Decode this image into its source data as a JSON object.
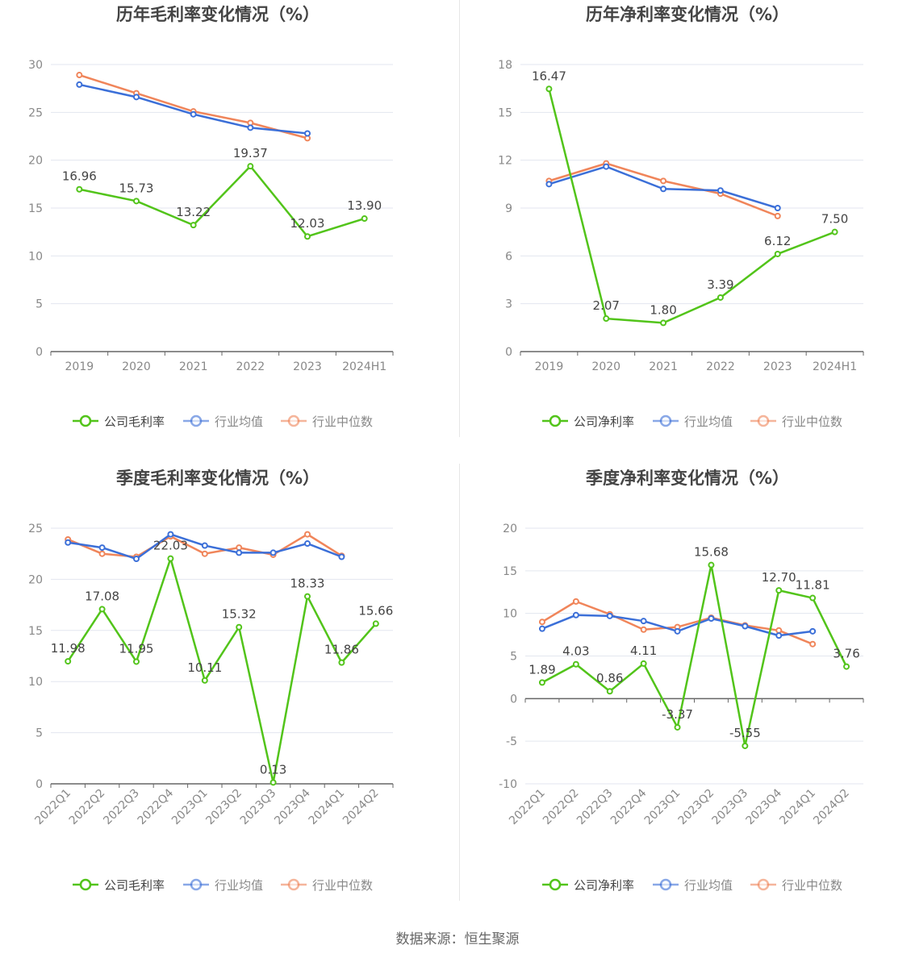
{
  "colors": {
    "company": "#52c41a",
    "industry_avg": "#3b6fd8",
    "industry_median": "#f0855a",
    "grid": "#e3e6ef",
    "axis": "#666666",
    "tick_text": "#888888",
    "title_text": "#444444",
    "label_text": "#444444"
  },
  "source_text": "数据来源：恒生聚源",
  "chart_data": [
    {
      "type": "line",
      "title": "历年毛利率变化情况（%）",
      "categories": [
        "2019",
        "2020",
        "2021",
        "2022",
        "2023",
        "2024H1"
      ],
      "ylim": [
        0,
        30
      ],
      "yticks": [
        0,
        5,
        10,
        15,
        20,
        25,
        30
      ],
      "rotate_x": false,
      "grid": true,
      "legend_position": "bottom",
      "series": [
        {
          "name": "公司毛利率",
          "key": "company",
          "labels": true,
          "values": [
            16.96,
            15.73,
            13.22,
            19.37,
            12.03,
            13.9
          ]
        },
        {
          "name": "行业均值",
          "key": "industry_avg",
          "labels": false,
          "values": [
            27.9,
            26.6,
            24.8,
            23.4,
            22.8,
            null
          ]
        },
        {
          "name": "行业中位数",
          "key": "industry_median",
          "labels": false,
          "values": [
            28.9,
            27.0,
            25.1,
            23.9,
            22.3,
            null
          ]
        }
      ]
    },
    {
      "type": "line",
      "title": "历年净利率变化情况（%）",
      "categories": [
        "2019",
        "2020",
        "2021",
        "2022",
        "2023",
        "2024H1"
      ],
      "ylim": [
        0,
        18
      ],
      "yticks": [
        0,
        3,
        6,
        9,
        12,
        15,
        18
      ],
      "rotate_x": false,
      "grid": true,
      "legend_position": "bottom",
      "series": [
        {
          "name": "公司净利率",
          "key": "company",
          "labels": true,
          "values": [
            16.47,
            2.07,
            1.8,
            3.39,
            6.12,
            7.5
          ]
        },
        {
          "name": "行业均值",
          "key": "industry_avg",
          "labels": false,
          "values": [
            10.5,
            11.6,
            10.2,
            10.1,
            9.0,
            null
          ]
        },
        {
          "name": "行业中位数",
          "key": "industry_median",
          "labels": false,
          "values": [
            10.7,
            11.8,
            10.7,
            9.9,
            8.5,
            null
          ]
        }
      ]
    },
    {
      "type": "line",
      "title": "季度毛利率变化情况（%）",
      "categories": [
        "2022Q1",
        "2022Q2",
        "2022Q3",
        "2022Q4",
        "2023Q1",
        "2023Q2",
        "2023Q3",
        "2023Q4",
        "2024Q1",
        "2024Q2"
      ],
      "ylim": [
        0,
        25
      ],
      "yticks": [
        0,
        5,
        10,
        15,
        20,
        25
      ],
      "rotate_x": true,
      "grid": true,
      "legend_position": "bottom",
      "series": [
        {
          "name": "公司毛利率",
          "key": "company",
          "labels": true,
          "values": [
            11.98,
            17.08,
            11.95,
            22.03,
            10.11,
            15.32,
            0.13,
            18.33,
            11.86,
            15.66
          ]
        },
        {
          "name": "行业均值",
          "key": "industry_avg",
          "labels": false,
          "values": [
            23.6,
            23.1,
            22.0,
            24.4,
            23.3,
            22.6,
            22.6,
            23.5,
            22.2,
            null
          ]
        },
        {
          "name": "行业中位数",
          "key": "industry_median",
          "labels": false,
          "values": [
            23.9,
            22.5,
            22.2,
            24.2,
            22.5,
            23.1,
            22.4,
            24.4,
            22.3,
            null
          ]
        }
      ]
    },
    {
      "type": "line",
      "title": "季度净利率变化情况（%）",
      "categories": [
        "2022Q1",
        "2022Q2",
        "2022Q3",
        "2022Q4",
        "2023Q1",
        "2023Q2",
        "2023Q3",
        "2023Q4",
        "2024Q1",
        "2024Q2"
      ],
      "ylim": [
        -10,
        20
      ],
      "yticks": [
        -10,
        -5,
        0,
        5,
        10,
        15,
        20
      ],
      "rotate_x": true,
      "grid": true,
      "legend_position": "bottom",
      "series": [
        {
          "name": "公司净利率",
          "key": "company",
          "labels": true,
          "values": [
            1.89,
            4.03,
            0.86,
            4.11,
            -3.37,
            15.68,
            -5.55,
            12.7,
            11.81,
            3.76
          ]
        },
        {
          "name": "行业均值",
          "key": "industry_avg",
          "labels": false,
          "values": [
            8.2,
            9.8,
            9.7,
            9.1,
            7.9,
            9.4,
            8.5,
            7.4,
            7.9,
            null
          ]
        },
        {
          "name": "行业中位数",
          "key": "industry_median",
          "labels": false,
          "values": [
            9.0,
            11.4,
            9.9,
            8.1,
            8.4,
            9.5,
            8.6,
            8.0,
            6.4,
            null
          ]
        }
      ]
    }
  ]
}
